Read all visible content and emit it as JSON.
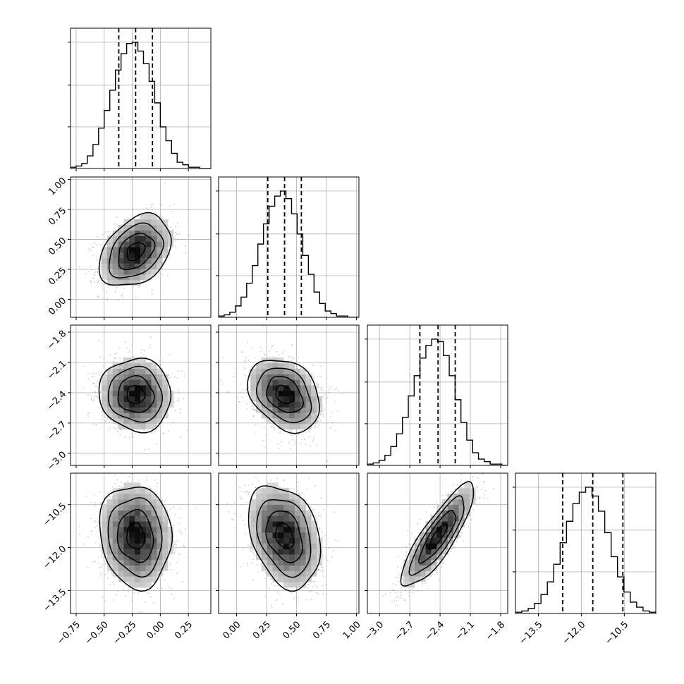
{
  "chart_data": {
    "type": "corner",
    "grid": true,
    "colors": {
      "line": "#000000",
      "grid": "#b0b0b0",
      "scatter": "#9e9e9e",
      "background": "#ffffff"
    },
    "parameters": [
      {
        "range": [
          -0.8,
          0.45
        ],
        "ticks": [
          -0.75,
          -0.5,
          -0.25,
          0.0,
          0.25
        ],
        "tick_labels": [
          "−0.75",
          "−0.50",
          "−0.25",
          "0.00",
          "0.25"
        ],
        "hist": [
          0.01,
          0.02,
          0.04,
          0.1,
          0.19,
          0.32,
          0.46,
          0.62,
          0.78,
          0.91,
          0.99,
          1.0,
          0.93,
          0.83,
          0.69,
          0.52,
          0.33,
          0.22,
          0.12,
          0.05,
          0.03,
          0.01,
          0.01,
          0.0,
          0.0
        ],
        "quantiles": [
          -0.37,
          -0.22,
          -0.07
        ]
      },
      {
        "range": [
          -0.15,
          1.02
        ],
        "ticks": [
          0.0,
          0.25,
          0.5,
          0.75,
          1.0
        ],
        "tick_labels": [
          "0.00",
          "0.25",
          "0.50",
          "0.75",
          "1.00"
        ],
        "hist": [
          0.01,
          0.02,
          0.04,
          0.09,
          0.16,
          0.27,
          0.41,
          0.58,
          0.74,
          0.88,
          0.96,
          1.0,
          0.94,
          0.82,
          0.66,
          0.49,
          0.34,
          0.2,
          0.11,
          0.05,
          0.03,
          0.01,
          0.01,
          0.0,
          0.0
        ],
        "quantiles": [
          0.26,
          0.4,
          0.54
        ]
      },
      {
        "range": [
          -3.12,
          -1.73
        ],
        "ticks": [
          -3.0,
          -2.7,
          -2.4,
          -2.1,
          -1.8
        ],
        "tick_labels": [
          "−3.0",
          "−2.7",
          "−2.4",
          "−2.1",
          "−1.8"
        ],
        "hist": [
          0.01,
          0.02,
          0.04,
          0.08,
          0.15,
          0.25,
          0.38,
          0.55,
          0.71,
          0.85,
          0.95,
          1.0,
          0.98,
          0.87,
          0.71,
          0.52,
          0.34,
          0.2,
          0.1,
          0.05,
          0.03,
          0.01,
          0.01,
          0.0
        ],
        "quantiles": [
          -2.6,
          -2.42,
          -2.25
        ]
      },
      {
        "range": [
          -14.3,
          -9.4
        ],
        "ticks": [
          -13.5,
          -12.0,
          -10.5
        ],
        "tick_labels": [
          "−13.5",
          "−12.0",
          "−10.5"
        ],
        "hist": [
          0.01,
          0.02,
          0.04,
          0.08,
          0.15,
          0.25,
          0.39,
          0.56,
          0.73,
          0.87,
          0.96,
          1.0,
          0.93,
          0.81,
          0.64,
          0.45,
          0.29,
          0.17,
          0.09,
          0.05,
          0.02,
          0.01
        ],
        "quantiles": [
          -12.65,
          -11.6,
          -10.55
        ]
      }
    ],
    "correlations": {
      "1-0": 0.35,
      "2-0": -0.05,
      "2-1": -0.3,
      "3-0": -0.1,
      "3-1": -0.3,
      "3-2": 0.85
    },
    "sigmas": [
      0.16,
      0.15,
      0.18,
      0.9
    ],
    "means": [
      -0.22,
      0.4,
      -2.42,
      -11.6
    ]
  }
}
